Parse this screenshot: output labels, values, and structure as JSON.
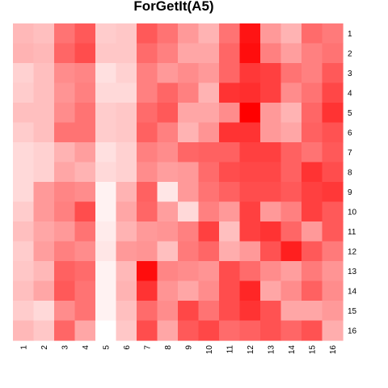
{
  "chart_data": {
    "type": "heatmap",
    "title": "ForGetIt(A5)",
    "xlabel": "",
    "ylabel": "",
    "x_labels": [
      "1",
      "2",
      "3",
      "4",
      "5",
      "6",
      "7",
      "8",
      "9",
      "10",
      "11",
      "12",
      "13",
      "14",
      "15",
      "16"
    ],
    "y_labels": [
      "1",
      "2",
      "3",
      "4",
      "5",
      "6",
      "7",
      "8",
      "9",
      "10",
      "11",
      "12",
      "13",
      "14",
      "15",
      "16"
    ],
    "color_scale": {
      "low": "#ffffff",
      "high": "#ff0000",
      "range": [
        0,
        1
      ]
    },
    "legend": "none",
    "grid": false,
    "z": [
      [
        0.28,
        0.25,
        0.55,
        0.65,
        0.2,
        0.22,
        0.65,
        0.55,
        0.4,
        0.3,
        0.55,
        0.92,
        0.4,
        0.3,
        0.58,
        0.52
      ],
      [
        0.3,
        0.28,
        0.6,
        0.7,
        0.22,
        0.22,
        0.58,
        0.5,
        0.35,
        0.35,
        0.6,
        0.95,
        0.5,
        0.38,
        0.5,
        0.55
      ],
      [
        0.18,
        0.25,
        0.45,
        0.48,
        0.12,
        0.18,
        0.5,
        0.4,
        0.45,
        0.4,
        0.6,
        0.78,
        0.75,
        0.55,
        0.5,
        0.65
      ],
      [
        0.2,
        0.25,
        0.42,
        0.5,
        0.15,
        0.15,
        0.5,
        0.6,
        0.5,
        0.3,
        0.8,
        0.82,
        0.75,
        0.45,
        0.55,
        0.72
      ],
      [
        0.25,
        0.25,
        0.45,
        0.55,
        0.2,
        0.22,
        0.58,
        0.65,
        0.35,
        0.35,
        0.45,
        1.0,
        0.4,
        0.3,
        0.6,
        0.8
      ],
      [
        0.2,
        0.25,
        0.55,
        0.55,
        0.2,
        0.22,
        0.62,
        0.5,
        0.3,
        0.42,
        0.8,
        0.8,
        0.4,
        0.35,
        0.62,
        0.68
      ],
      [
        0.15,
        0.18,
        0.3,
        0.38,
        0.12,
        0.18,
        0.5,
        0.45,
        0.6,
        0.62,
        0.62,
        0.75,
        0.75,
        0.62,
        0.55,
        0.65
      ],
      [
        0.15,
        0.18,
        0.35,
        0.3,
        0.15,
        0.18,
        0.45,
        0.38,
        0.4,
        0.58,
        0.7,
        0.72,
        0.72,
        0.62,
        0.8,
        0.7
      ],
      [
        0.15,
        0.4,
        0.48,
        0.45,
        0.05,
        0.3,
        0.62,
        0.1,
        0.4,
        0.55,
        0.62,
        0.7,
        0.7,
        0.65,
        0.75,
        0.78
      ],
      [
        0.2,
        0.4,
        0.5,
        0.7,
        0.05,
        0.35,
        0.6,
        0.38,
        0.15,
        0.5,
        0.4,
        0.75,
        0.4,
        0.5,
        0.75,
        0.65
      ],
      [
        0.25,
        0.35,
        0.4,
        0.55,
        0.08,
        0.3,
        0.4,
        0.42,
        0.5,
        0.75,
        0.25,
        0.75,
        0.8,
        0.6,
        0.4,
        0.65
      ],
      [
        0.2,
        0.38,
        0.5,
        0.45,
        0.1,
        0.4,
        0.42,
        0.25,
        0.52,
        0.6,
        0.32,
        0.4,
        0.68,
        0.88,
        0.65,
        0.52
      ],
      [
        0.22,
        0.28,
        0.62,
        0.58,
        0.05,
        0.28,
        0.95,
        0.48,
        0.45,
        0.42,
        0.7,
        0.58,
        0.45,
        0.38,
        0.52,
        0.42
      ],
      [
        0.25,
        0.35,
        0.65,
        0.55,
        0.05,
        0.3,
        0.8,
        0.42,
        0.35,
        0.45,
        0.7,
        0.85,
        0.35,
        0.45,
        0.62,
        0.45
      ],
      [
        0.2,
        0.15,
        0.45,
        0.55,
        0.05,
        0.25,
        0.58,
        0.45,
        0.72,
        0.55,
        0.7,
        0.8,
        0.68,
        0.35,
        0.35,
        0.4
      ],
      [
        0.28,
        0.22,
        0.6,
        0.35,
        0.0,
        0.22,
        0.7,
        0.35,
        0.65,
        0.72,
        0.58,
        0.62,
        0.68,
        0.6,
        0.68,
        0.32
      ]
    ]
  }
}
